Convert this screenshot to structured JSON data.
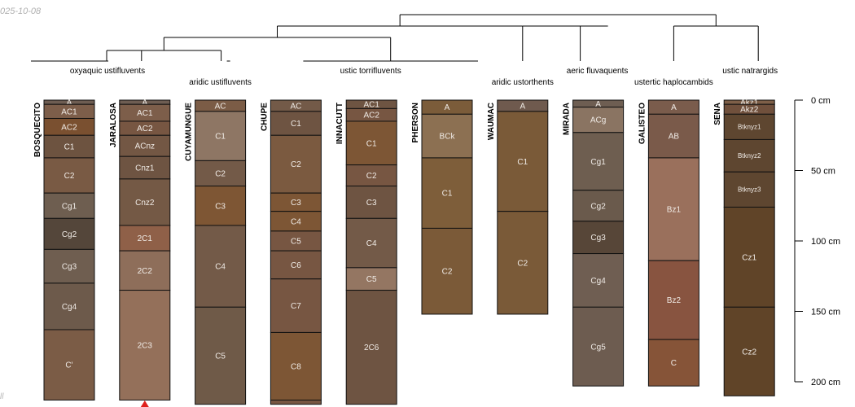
{
  "header": {
    "date": "025-10-08",
    "footer": "ll"
  },
  "depth_axis": {
    "unit": "cm",
    "ticks": [
      {
        "depth": 0,
        "label": "0 cm"
      },
      {
        "depth": 50,
        "label": "50 cm"
      },
      {
        "depth": 100,
        "label": "100 cm"
      },
      {
        "depth": 150,
        "label": "150 cm"
      },
      {
        "depth": 200,
        "label": "200 cm"
      }
    ]
  },
  "groups": [
    {
      "name": "oxyaquic ustifluvents",
      "members": [
        "BOSQUECITO",
        "JARALOSA"
      ]
    },
    {
      "name": "aridic ustifluvents",
      "members": [
        "CUYAMUNGUE"
      ]
    },
    {
      "name": "ustic torrifluvents",
      "members": [
        "CHUPE",
        "INNACUTT",
        "PHERSON"
      ]
    },
    {
      "name": "aridic ustorthents",
      "members": [
        "WAUMAC"
      ]
    },
    {
      "name": "aeric fluvaquents",
      "members": [
        "MIRADA"
      ]
    },
    {
      "name": "ustertic haplocambids",
      "members": [
        "GALISTEO"
      ]
    },
    {
      "name": "ustic natrargids",
      "members": [
        "SENA"
      ]
    }
  ],
  "profiles": [
    {
      "name": "BOSQUECITO",
      "horizons": [
        {
          "name": "A",
          "top": 0,
          "bottom": 3,
          "color": "#6e5d52"
        },
        {
          "name": "AC1",
          "top": 3,
          "bottom": 13,
          "color": "#7d5e4a"
        },
        {
          "name": "AC2",
          "top": 13,
          "bottom": 25,
          "color": "#7a5030"
        },
        {
          "name": "C1",
          "top": 25,
          "bottom": 41,
          "color": "#6d5340"
        },
        {
          "name": "C2",
          "top": 41,
          "bottom": 66,
          "color": "#795a44"
        },
        {
          "name": "Cg1",
          "top": 66,
          "bottom": 84,
          "color": "#6e5e50"
        },
        {
          "name": "Cg2",
          "top": 84,
          "bottom": 106,
          "color": "#54463a"
        },
        {
          "name": "Cg3",
          "top": 106,
          "bottom": 130,
          "color": "#6f5e50"
        },
        {
          "name": "Cg4",
          "top": 130,
          "bottom": 163,
          "color": "#6d5a4b"
        },
        {
          "name": "C'",
          "top": 163,
          "bottom": 213,
          "color": "#7b5c46"
        }
      ]
    },
    {
      "name": "JARALOSA",
      "horizons": [
        {
          "name": "A",
          "top": 0,
          "bottom": 3,
          "color": "#6e5d52"
        },
        {
          "name": "AC1",
          "top": 3,
          "bottom": 15,
          "color": "#7d5e4a"
        },
        {
          "name": "AC2",
          "top": 15,
          "bottom": 25,
          "color": "#775642"
        },
        {
          "name": "ACnz",
          "top": 25,
          "bottom": 40,
          "color": "#735744"
        },
        {
          "name": "Cnz1",
          "top": 40,
          "bottom": 56,
          "color": "#6e5442"
        },
        {
          "name": "Cnz2",
          "top": 56,
          "bottom": 89,
          "color": "#745945"
        },
        {
          "name": "2C1",
          "top": 89,
          "bottom": 107,
          "color": "#8f6048"
        },
        {
          "name": "2C2",
          "top": 107,
          "bottom": 135,
          "color": "#8e6e5a"
        },
        {
          "name": "2C3",
          "top": 135,
          "bottom": 213,
          "color": "#94705a"
        }
      ]
    },
    {
      "name": "CUYAMUNGUE",
      "horizons": [
        {
          "name": "AC",
          "top": 0,
          "bottom": 8,
          "color": "#7b5c46"
        },
        {
          "name": "C1",
          "top": 8,
          "bottom": 43,
          "color": "#8e7664"
        },
        {
          "name": "C2",
          "top": 43,
          "bottom": 61,
          "color": "#735a48"
        },
        {
          "name": "C3",
          "top": 61,
          "bottom": 89,
          "color": "#7e5634"
        },
        {
          "name": "C4",
          "top": 89,
          "bottom": 147,
          "color": "#735a48"
        },
        {
          "name": "C5",
          "top": 147,
          "bottom": 216,
          "color": "#6f5a48"
        }
      ]
    },
    {
      "name": "CHUPE",
      "horizons": [
        {
          "name": "AC",
          "top": 0,
          "bottom": 8,
          "color": "#735a48"
        },
        {
          "name": "C1",
          "top": 8,
          "bottom": 25,
          "color": "#6e5442"
        },
        {
          "name": "C2",
          "top": 25,
          "bottom": 66,
          "color": "#7b5a40"
        },
        {
          "name": "C3",
          "top": 66,
          "bottom": 79,
          "color": "#7d5635"
        },
        {
          "name": "C4",
          "top": 79,
          "bottom": 93,
          "color": "#7d5635"
        },
        {
          "name": "C5",
          "top": 93,
          "bottom": 107,
          "color": "#775642"
        },
        {
          "name": "C6",
          "top": 107,
          "bottom": 127,
          "color": "#775642"
        },
        {
          "name": "C7",
          "top": 127,
          "bottom": 165,
          "color": "#775642"
        },
        {
          "name": "C8",
          "top": 165,
          "bottom": 213,
          "color": "#7d5635"
        },
        {
          "name": "",
          "top": 213,
          "bottom": 216,
          "color": "#775642"
        }
      ]
    },
    {
      "name": "INNACUTT",
      "horizons": [
        {
          "name": "AC1",
          "top": 0,
          "bottom": 6,
          "color": "#6e5442"
        },
        {
          "name": "AC2",
          "top": 6,
          "bottom": 15,
          "color": "#775642"
        },
        {
          "name": "C1",
          "top": 15,
          "bottom": 46,
          "color": "#7d5635"
        },
        {
          "name": "C2",
          "top": 46,
          "bottom": 61,
          "color": "#775642"
        },
        {
          "name": "C3",
          "top": 61,
          "bottom": 84,
          "color": "#6e5442"
        },
        {
          "name": "C4",
          "top": 84,
          "bottom": 119,
          "color": "#735a48"
        },
        {
          "name": "C5",
          "top": 119,
          "bottom": 135,
          "color": "#947662"
        },
        {
          "name": "2C6",
          "top": 135,
          "bottom": 216,
          "color": "#6e5442"
        }
      ]
    },
    {
      "name": "PHERSON",
      "horizons": [
        {
          "name": "A",
          "top": 0,
          "bottom": 10,
          "color": "#7b5c3a"
        },
        {
          "name": "BCk",
          "top": 10,
          "bottom": 41,
          "color": "#8c7052"
        },
        {
          "name": "C1",
          "top": 41,
          "bottom": 91,
          "color": "#7e5e3a"
        },
        {
          "name": "C2",
          "top": 91,
          "bottom": 152,
          "color": "#7b5a38"
        }
      ]
    },
    {
      "name": "WAUMAC",
      "horizons": [
        {
          "name": "A",
          "top": 0,
          "bottom": 8,
          "color": "#6f5a4e"
        },
        {
          "name": "C1",
          "top": 8,
          "bottom": 79,
          "color": "#7a5a38"
        },
        {
          "name": "C2",
          "top": 79,
          "bottom": 152,
          "color": "#7a5a38"
        }
      ]
    },
    {
      "name": "MIRADA",
      "horizons": [
        {
          "name": "A",
          "top": 0,
          "bottom": 5,
          "color": "#6e5e52"
        },
        {
          "name": "ACg",
          "top": 5,
          "bottom": 23,
          "color": "#8a7462"
        },
        {
          "name": "Cg1",
          "top": 23,
          "bottom": 64,
          "color": "#6e5e50"
        },
        {
          "name": "Cg2",
          "top": 64,
          "bottom": 86,
          "color": "#6a5a4c"
        },
        {
          "name": "Cg3",
          "top": 86,
          "bottom": 109,
          "color": "#574638"
        },
        {
          "name": "Cg4",
          "top": 109,
          "bottom": 147,
          "color": "#6f5e52"
        },
        {
          "name": "Cg5",
          "top": 147,
          "bottom": 203,
          "color": "#6d5c50"
        }
      ]
    },
    {
      "name": "GALISTEO",
      "horizons": [
        {
          "name": "A",
          "top": 0,
          "bottom": 10,
          "color": "#7a5c4c"
        },
        {
          "name": "AB",
          "top": 10,
          "bottom": 41,
          "color": "#7a5a4a"
        },
        {
          "name": "Bz1",
          "top": 41,
          "bottom": 114,
          "color": "#9a705c"
        },
        {
          "name": "Bz2",
          "top": 114,
          "bottom": 170,
          "color": "#885440"
        },
        {
          "name": "C",
          "top": 170,
          "bottom": 203,
          "color": "#865438"
        }
      ]
    },
    {
      "name": "SENA",
      "horizons": [
        {
          "name": "Akz1",
          "top": 0,
          "bottom": 3,
          "color": "#7e5f48"
        },
        {
          "name": "Akz2",
          "top": 3,
          "bottom": 10,
          "color": "#70503c"
        },
        {
          "name": "Btknyz1",
          "top": 10,
          "bottom": 28,
          "color": "#5e4630"
        },
        {
          "name": "Btknyz2",
          "top": 28,
          "bottom": 51,
          "color": "#5e4630"
        },
        {
          "name": "Btknyz3",
          "top": 51,
          "bottom": 76,
          "color": "#5e4630"
        },
        {
          "name": "Cz1",
          "top": 76,
          "bottom": 147,
          "color": "#604428"
        },
        {
          "name": "Cz2",
          "top": 147,
          "bottom": 210,
          "color": "#604428"
        }
      ]
    }
  ]
}
